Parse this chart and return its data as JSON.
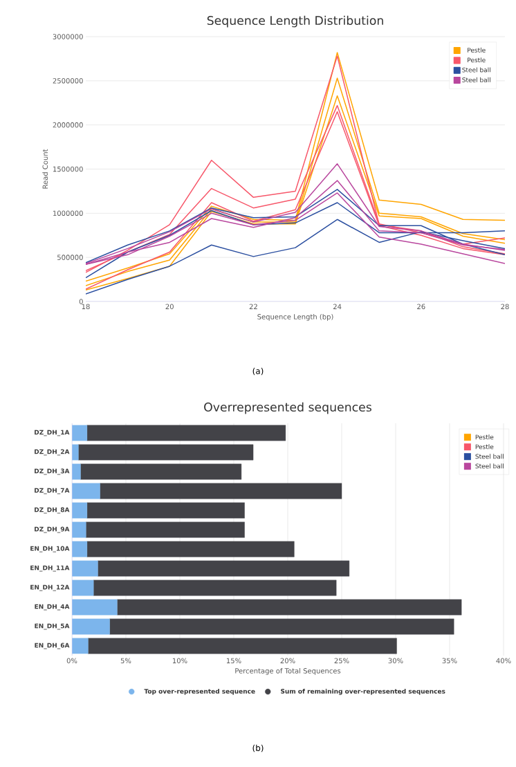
{
  "chart_data": [
    {
      "type": "line",
      "title": "Sequence Length Distribution",
      "xlabel": "Sequence Length (bp)",
      "ylabel": "Read Count",
      "x": [
        18,
        19,
        20,
        21,
        22,
        23,
        24,
        25,
        26,
        27,
        28
      ],
      "xlim": [
        18,
        28
      ],
      "xticks": [
        18,
        20,
        22,
        24,
        26,
        28
      ],
      "ylim": [
        0,
        3000000
      ],
      "yticks": [
        0,
        500000,
        1000000,
        1500000,
        2000000,
        2500000,
        3000000
      ],
      "grid": "y",
      "legend": "top right",
      "annotations": [
        "(a)"
      ],
      "series": [
        {
          "name": "Pestle",
          "color": "#ffa500",
          "values": [
            230000,
            380000,
            540000,
            1080000,
            930000,
            920000,
            2820000,
            1150000,
            1100000,
            930000,
            920000
          ]
        },
        {
          "color": "#ffa500",
          "values": [
            180000,
            340000,
            470000,
            1050000,
            900000,
            900000,
            2530000,
            1000000,
            960000,
            770000,
            700000
          ]
        },
        {
          "color": "#ffa500",
          "values": [
            130000,
            260000,
            400000,
            1020000,
            880000,
            880000,
            2330000,
            970000,
            940000,
            740000,
            660000
          ]
        },
        {
          "name": "Pestle",
          "color": "#f7576a",
          "values": [
            330000,
            580000,
            870000,
            1600000,
            1180000,
            1250000,
            2780000,
            870000,
            800000,
            620000,
            540000
          ]
        },
        {
          "color": "#f7576a",
          "values": [
            350000,
            560000,
            760000,
            1280000,
            1060000,
            1160000,
            2220000,
            880000,
            780000,
            650000,
            720000
          ]
        },
        {
          "color": "#f7576a",
          "values": [
            140000,
            360000,
            560000,
            1120000,
            910000,
            1040000,
            2150000,
            860000,
            750000,
            600000,
            530000
          ]
        },
        {
          "name": "Steel ball",
          "color": "#2b4fa0",
          "values": [
            440000,
            640000,
            800000,
            1060000,
            950000,
            960000,
            1270000,
            860000,
            860000,
            650000,
            530000
          ]
        },
        {
          "color": "#2b4fa0",
          "values": [
            270000,
            560000,
            750000,
            1030000,
            870000,
            890000,
            1120000,
            780000,
            780000,
            780000,
            800000
          ]
        },
        {
          "color": "#2b4fa0",
          "values": [
            85000,
            250000,
            400000,
            640000,
            510000,
            610000,
            930000,
            670000,
            790000,
            690000,
            600000
          ]
        },
        {
          "name": "Steel ball",
          "color": "#b9479e",
          "values": [
            430000,
            600000,
            790000,
            1050000,
            900000,
            1010000,
            1560000,
            850000,
            800000,
            650000,
            580000
          ]
        },
        {
          "color": "#b9479e",
          "values": [
            420000,
            560000,
            670000,
            940000,
            840000,
            950000,
            1370000,
            800000,
            780000,
            640000,
            590000
          ]
        },
        {
          "color": "#b9479e",
          "values": [
            420000,
            530000,
            740000,
            1000000,
            870000,
            920000,
            1230000,
            730000,
            650000,
            540000,
            430000
          ]
        }
      ]
    },
    {
      "type": "bar",
      "orientation": "horizontal",
      "stacked": true,
      "title": "Overrepresented sequences",
      "xlabel": "Percentage of Total Sequences",
      "categories": [
        "DZ_DH_1A",
        "DZ_DH_2A",
        "DZ_DH_3A",
        "DZ_DH_7A",
        "DZ_DH_8A",
        "DZ_DH_9A",
        "EN_DH_10A",
        "EN_DH_11A",
        "EN_DH_12A",
        "EN_DH_4A",
        "EN_DH_5A",
        "EN_DH_6A"
      ],
      "xlim": [
        0,
        40
      ],
      "xticks": [
        {
          "value": 0,
          "label": "0%"
        },
        {
          "value": 5,
          "label": "5%"
        },
        {
          "value": 10,
          "label": "10%"
        },
        {
          "value": 15,
          "label": "15%"
        },
        {
          "value": 20,
          "label": "20%"
        },
        {
          "value": 25,
          "label": "25%"
        },
        {
          "value": 30,
          "label": "30%"
        },
        {
          "value": 35,
          "label": "35%"
        },
        {
          "value": 40,
          "label": "40%"
        }
      ],
      "grid": "x",
      "legend": "bottom",
      "annotations": [
        "(b)",
        "Pestle",
        "Pestle",
        "Steel ball",
        "Steel ball"
      ],
      "series": [
        {
          "name": "Top over-represented sequence",
          "color": "#7cb5ec",
          "values": [
            1.4,
            0.6,
            0.8,
            2.6,
            1.4,
            1.3,
            1.4,
            2.4,
            2.0,
            4.2,
            3.5,
            1.5
          ]
        },
        {
          "name": "Sum of remaining over-represented sequences",
          "color": "#434348",
          "values": [
            18.4,
            16.2,
            14.9,
            22.4,
            14.6,
            14.7,
            19.2,
            23.3,
            22.5,
            31.9,
            31.9,
            28.6
          ]
        }
      ]
    }
  ]
}
